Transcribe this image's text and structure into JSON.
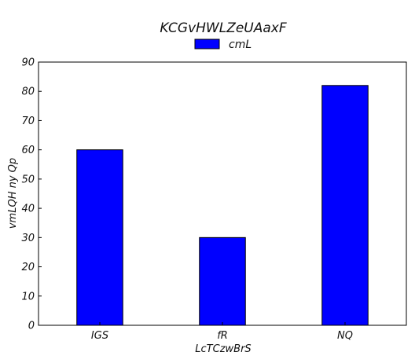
{
  "chart_data": {
    "type": "bar",
    "title": "KCGvHWLZeUAaxF",
    "xlabel": "LcTCzwBrS",
    "ylabel": "vmLQH ny Qp",
    "categories": [
      "IGS",
      "fR",
      "NQ"
    ],
    "series": [
      {
        "name": "cmL",
        "values": [
          60,
          30,
          82
        ],
        "color": "#0000ff"
      }
    ],
    "ylim": [
      0,
      90
    ],
    "yticks": [
      0,
      10,
      20,
      30,
      40,
      50,
      60,
      70,
      80,
      90
    ],
    "grid": false,
    "legend_position": "top-center"
  }
}
